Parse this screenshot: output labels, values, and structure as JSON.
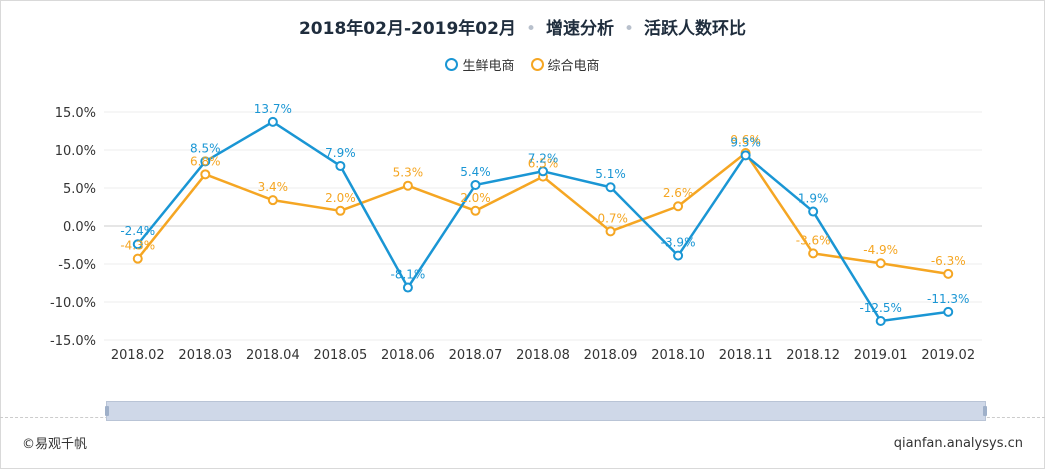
{
  "title": {
    "period": "2018年02月-2019年02月",
    "sep": "•",
    "analysis": "增速分析",
    "metric": "活跃人数环比"
  },
  "legend": [
    {
      "name": "生鲜电商",
      "color": "#1a96d4"
    },
    {
      "name": "综合电商",
      "color": "#f5a623"
    }
  ],
  "branding": {
    "left": "©易观千帆",
    "right": "qianfan.analysys.cn"
  },
  "chart_data": {
    "type": "line",
    "categories": [
      "2018.02",
      "2018.03",
      "2018.04",
      "2018.05",
      "2018.06",
      "2018.07",
      "2018.08",
      "2018.09",
      "2018.10",
      "2018.11",
      "2018.12",
      "2019.01",
      "2019.02"
    ],
    "series": [
      {
        "name": "生鲜电商",
        "color": "#1a96d4",
        "values": [
          -2.4,
          8.5,
          13.7,
          7.9,
          -8.1,
          5.4,
          7.2,
          5.1,
          -3.9,
          9.3,
          1.9,
          -12.5,
          -11.3
        ],
        "labels": [
          "-2.4%",
          "8.5%",
          "13.7%",
          "7.9%",
          "-8.1%",
          "5.4%",
          "7.2%",
          "5.1%",
          "-3.9%",
          "9.3%",
          "1.9%",
          "-12.5%",
          "-11.3%"
        ]
      },
      {
        "name": "综合电商",
        "color": "#f5a623",
        "values": [
          -4.3,
          6.8,
          3.4,
          2.0,
          5.3,
          2.0,
          6.5,
          -0.7,
          2.6,
          9.6,
          -3.6,
          -4.9,
          -6.3
        ],
        "labels": [
          "-4.3%",
          "6.8%",
          "3.4%",
          "2.0%",
          "5.3%",
          "2.0%",
          "6.5%",
          "-0.7%",
          "2.6%",
          "9.6%",
          "-3.6%",
          "-4.9%",
          "-6.3%"
        ]
      }
    ],
    "yticks": [
      15,
      10,
      5,
      0,
      -5,
      -10,
      -15
    ],
    "ytick_labels": [
      "15.0%",
      "10.0%",
      "5.0%",
      "0.0%",
      "-5.0%",
      "-10.0%",
      "-15.0%"
    ],
    "ylim": [
      -15,
      15
    ],
    "xlabel": "",
    "ylabel": ""
  }
}
